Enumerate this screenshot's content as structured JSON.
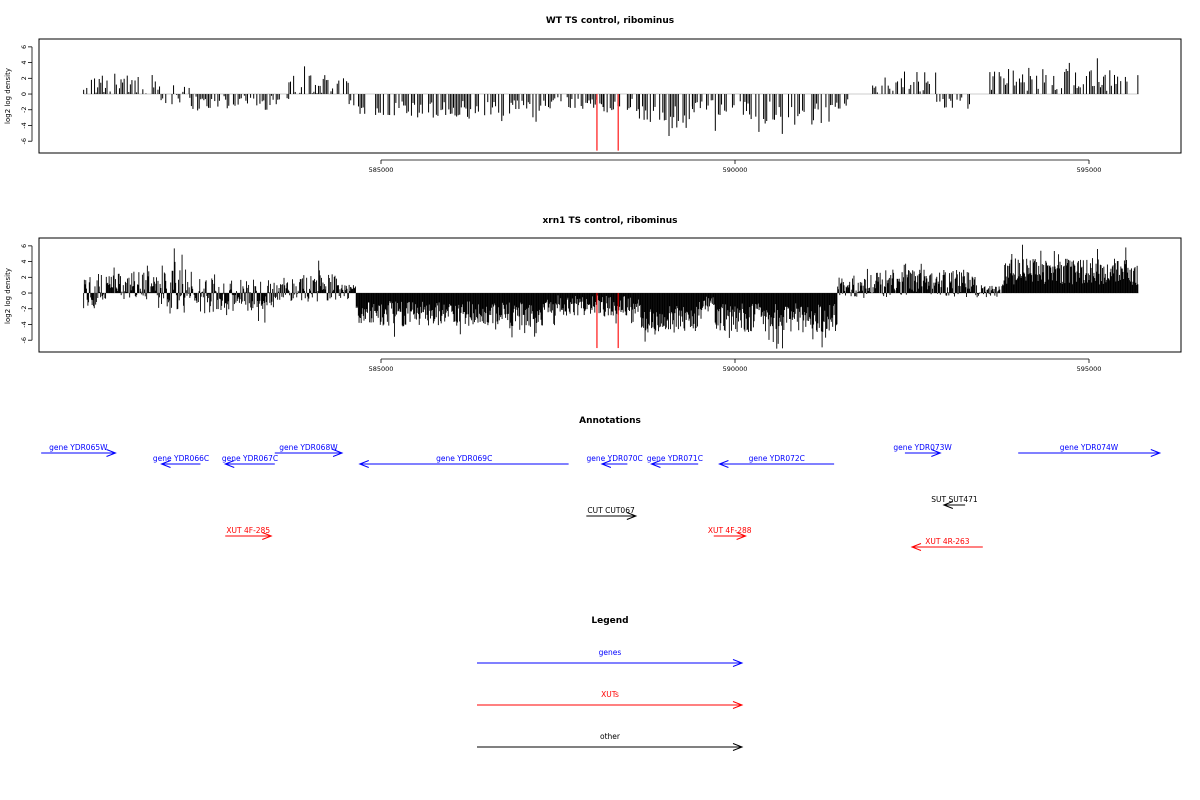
{
  "colors": {
    "genes": "#0000ff",
    "xuts": "#ff0000",
    "other": "#000000",
    "bars": "#000000",
    "highlight_bars": "#ff0000",
    "zero_line": "#bbbbbb"
  },
  "chart_data": [
    {
      "type": "bar",
      "title": "WT TS control, ribominus",
      "ylabel": "log2 log density",
      "ylim": [
        -7.5,
        7
      ],
      "y_ticks": [
        -6,
        -4,
        -2,
        0,
        2,
        4,
        6
      ],
      "xlim": [
        580200,
        596000
      ],
      "x_ticks": [
        585000,
        590000,
        595000
      ],
      "x_tick_labels": [
        "585000",
        "590000",
        "595000"
      ],
      "grid": false,
      "density": "sparse",
      "segments": [
        {
          "x0": 580800,
          "x1": 581850,
          "mean": 1.3,
          "amp": 1.3
        },
        {
          "x0": 581850,
          "x1": 582300,
          "mean": 0.3,
          "amp": 1.8
        },
        {
          "x0": 582300,
          "x1": 582850,
          "mean": -1.2,
          "amp": 1.0
        },
        {
          "x0": 582850,
          "x1": 583300,
          "mean": -0.8,
          "amp": 0.7
        },
        {
          "x0": 583300,
          "x1": 583700,
          "mean": -0.8,
          "amp": 0.6
        },
        {
          "x0": 583700,
          "x1": 584550,
          "mean": 1.2,
          "amp": 1.3
        },
        {
          "x0": 584550,
          "x1": 587300,
          "mean": -1.9,
          "amp": 1.1
        },
        {
          "x0": 587300,
          "x1": 588150,
          "mean": -1.2,
          "amp": 0.8
        },
        {
          "x0": 588150,
          "x1": 588650,
          "mean": -1.4,
          "amp": 0.9
        },
        {
          "x0": 588650,
          "x1": 589400,
          "mean": -3.0,
          "amp": 1.5
        },
        {
          "x0": 589400,
          "x1": 589700,
          "mean": -1.2,
          "amp": 0.8
        },
        {
          "x0": 589700,
          "x1": 591350,
          "mean": -2.4,
          "amp": 1.5
        },
        {
          "x0": 591350,
          "x1": 591600,
          "mean": -1.2,
          "amp": 0.7
        },
        {
          "x0": 591900,
          "x1": 592350,
          "mean": 0.8,
          "amp": 0.8
        },
        {
          "x0": 592350,
          "x1": 592850,
          "mean": 1.6,
          "amp": 1.3
        },
        {
          "x0": 592850,
          "x1": 593400,
          "mean": -0.9,
          "amp": 1.0
        },
        {
          "x0": 593600,
          "x1": 595700,
          "mean": 1.8,
          "amp": 1.4
        }
      ],
      "highlight_bars": [
        {
          "x": 588050,
          "y": -7.2
        },
        {
          "x": 588350,
          "y": -7.2
        }
      ]
    },
    {
      "type": "bar",
      "title": "xrn1 TS control, ribominus",
      "ylabel": "log2 log density",
      "ylim": [
        -7.5,
        7
      ],
      "y_ticks": [
        -6,
        -4,
        -2,
        0,
        2,
        4,
        6
      ],
      "xlim": [
        580200,
        596000
      ],
      "x_ticks": [
        585000,
        590000,
        595000
      ],
      "x_tick_labels": [
        "585000",
        "590000",
        "595000"
      ],
      "grid": false,
      "density": "dense",
      "segments": [
        {
          "x0": 580800,
          "x1": 581200,
          "mean": 0.4,
          "amp": 2.4
        },
        {
          "x0": 581200,
          "x1": 581850,
          "mean": 1.0,
          "amp": 1.8
        },
        {
          "x0": 581850,
          "x1": 582700,
          "mean": 0.1,
          "amp": 2.8
        },
        {
          "x0": 582700,
          "x1": 583500,
          "mean": -0.3,
          "amp": 2.0
        },
        {
          "x0": 583500,
          "x1": 584400,
          "mean": 0.7,
          "amp": 1.8
        },
        {
          "x0": 584400,
          "x1": 584650,
          "mean": 0.0,
          "amp": 1.2
        },
        {
          "x0": 584650,
          "x1": 587300,
          "mean": -2.6,
          "amp": 1.6
        },
        {
          "x0": 587300,
          "x1": 588650,
          "mean": -1.6,
          "amp": 1.3
        },
        {
          "x0": 588650,
          "x1": 589500,
          "mean": -3.2,
          "amp": 1.7
        },
        {
          "x0": 589500,
          "x1": 589700,
          "mean": -1.2,
          "amp": 1.0
        },
        {
          "x0": 589700,
          "x1": 591450,
          "mean": -3.1,
          "amp": 1.9
        },
        {
          "x0": 591450,
          "x1": 592000,
          "mean": 0.6,
          "amp": 1.3
        },
        {
          "x0": 592000,
          "x1": 593400,
          "mean": 1.2,
          "amp": 1.8
        },
        {
          "x0": 593400,
          "x1": 593800,
          "mean": 0.2,
          "amp": 0.8
        },
        {
          "x0": 593800,
          "x1": 595700,
          "mean": 2.7,
          "amp": 1.7
        }
      ],
      "highlight_bars": [
        {
          "x": 588050,
          "y": -7.0
        },
        {
          "x": 588350,
          "y": -7.0
        }
      ]
    }
  ],
  "annotations": {
    "title": "Annotations",
    "features": [
      {
        "label": "gene YDR065W",
        "kind": "gene",
        "strand": "+",
        "start": 580200,
        "end": 581250
      },
      {
        "label": "gene YDR066C",
        "kind": "gene",
        "strand": "-",
        "start": 581900,
        "end": 582450
      },
      {
        "label": "gene YDR067C",
        "kind": "gene",
        "strand": "-",
        "start": 582800,
        "end": 583500
      },
      {
        "label": "gene YDR068W",
        "kind": "gene",
        "strand": "+",
        "start": 583500,
        "end": 584450
      },
      {
        "label": "gene YDR069C",
        "kind": "gene",
        "strand": "-",
        "start": 584700,
        "end": 587650
      },
      {
        "label": "gene YDR070C",
        "kind": "gene",
        "strand": "-",
        "start": 588120,
        "end": 588480
      },
      {
        "label": "gene YDR071C",
        "kind": "gene",
        "strand": "-",
        "start": 588820,
        "end": 589480
      },
      {
        "label": "gene YDR072C",
        "kind": "gene",
        "strand": "-",
        "start": 589780,
        "end": 591400
      },
      {
        "label": "gene YDR073W",
        "kind": "gene",
        "strand": "+",
        "start": 592400,
        "end": 592900
      },
      {
        "label": "gene YDR074W",
        "kind": "gene",
        "strand": "+",
        "start": 594000,
        "end": 596000
      },
      {
        "label": "CUT CUT067",
        "kind": "other",
        "strand": "+",
        "start": 587900,
        "end": 588600
      },
      {
        "label": "SUT SUT471",
        "kind": "other",
        "strand": "-",
        "start": 592950,
        "end": 593250
      },
      {
        "label": "XUT 4F-285",
        "kind": "xut",
        "strand": "+",
        "start": 582800,
        "end": 583450
      },
      {
        "label": "XUT 4F-288",
        "kind": "xut",
        "strand": "+",
        "start": 589700,
        "end": 590150
      },
      {
        "label": "XUT 4R-263",
        "kind": "xut",
        "strand": "-",
        "start": 592500,
        "end": 593500
      }
    ]
  },
  "legend": {
    "title": "Legend",
    "items": [
      {
        "label": "genes",
        "kind": "gene"
      },
      {
        "label": "XUTs",
        "kind": "xut"
      },
      {
        "label": "other",
        "kind": "other"
      }
    ]
  }
}
